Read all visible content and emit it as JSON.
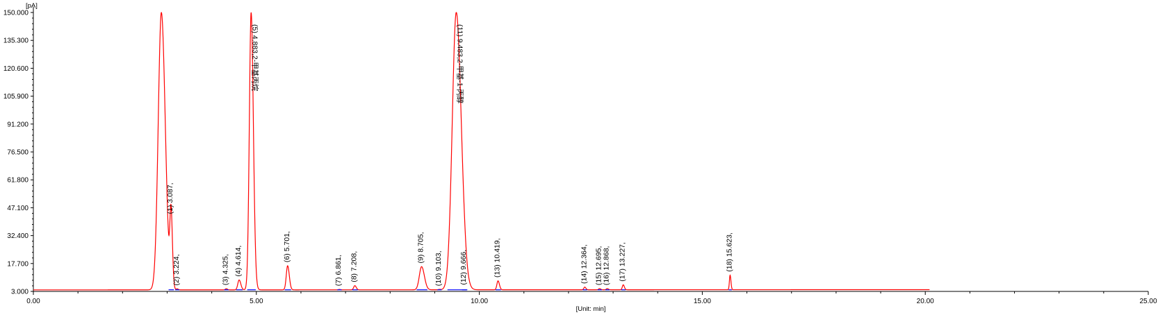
{
  "chart_data": {
    "type": "line",
    "y_unit": "[pA]",
    "x_unit": "[Unit: min]",
    "xlim": [
      0,
      25
    ],
    "ylim": [
      3.0,
      150.0
    ],
    "x_ticks": [
      "0.00",
      "5.00",
      "10.00",
      "15.00",
      "20.00",
      "25.00"
    ],
    "y_ticks": [
      "3.000",
      "17.700",
      "32.400",
      "47.100",
      "61.800",
      "76.500",
      "91.200",
      "105.900",
      "120.600",
      "135.300",
      "150.000"
    ],
    "grid": false,
    "baseline_pA": 3.8,
    "trace_end_min": 20.1,
    "colors": {
      "trace": "#ff0000",
      "integration": "#0000ff",
      "axis": "#000000"
    },
    "peaks": [
      {
        "rt": 2.87,
        "height": 150.0,
        "width": 0.07,
        "label": ""
      },
      {
        "rt": 3.087,
        "height": 42.0,
        "width": 0.025,
        "label": "(1) 3.087,"
      },
      {
        "rt": 3.224,
        "height": 4.3,
        "width": 0.02,
        "label": "(2) 3.224,"
      },
      {
        "rt": 4.325,
        "height": 4.4,
        "width": 0.02,
        "label": "(3) 4.325,"
      },
      {
        "rt": 4.614,
        "height": 9.0,
        "width": 0.03,
        "label": "(4) 4.614,"
      },
      {
        "rt": 4.883,
        "height": 150.0,
        "width": 0.04,
        "label": "(5) 4.883,2-甲基丙烷"
      },
      {
        "rt": 5.701,
        "height": 16.5,
        "width": 0.03,
        "label": "(6) 5.701,"
      },
      {
        "rt": 6.861,
        "height": 4.0,
        "width": 0.02,
        "label": "(7) 6.861,"
      },
      {
        "rt": 7.208,
        "height": 6.0,
        "width": 0.025,
        "label": "(8) 7.208,"
      },
      {
        "rt": 8.705,
        "height": 16.0,
        "width": 0.05,
        "label": "(9) 8.705,"
      },
      {
        "rt": 9.103,
        "height": 4.0,
        "width": 0.02,
        "label": "(10) 9.103,"
      },
      {
        "rt": 9.483,
        "height": 150.0,
        "width": 0.09,
        "label": "(11) 9.483,2-甲基-1-丙醇"
      },
      {
        "rt": 9.666,
        "height": 4.6,
        "width": 0.025,
        "label": "(12) 9.666,"
      },
      {
        "rt": 10.419,
        "height": 8.5,
        "width": 0.025,
        "label": "(13) 10.419,"
      },
      {
        "rt": 12.364,
        "height": 5.2,
        "width": 0.02,
        "label": "(14) 12.364,"
      },
      {
        "rt": 12.695,
        "height": 4.4,
        "width": 0.02,
        "label": "(15) 12.695,"
      },
      {
        "rt": 12.868,
        "height": 4.4,
        "width": 0.02,
        "label": "(16) 12.868,"
      },
      {
        "rt": 13.227,
        "height": 6.4,
        "width": 0.02,
        "label": "(17) 13.227,"
      },
      {
        "rt": 15.623,
        "height": 11.5,
        "width": 0.015,
        "label": "(18) 15.623,"
      }
    ]
  }
}
